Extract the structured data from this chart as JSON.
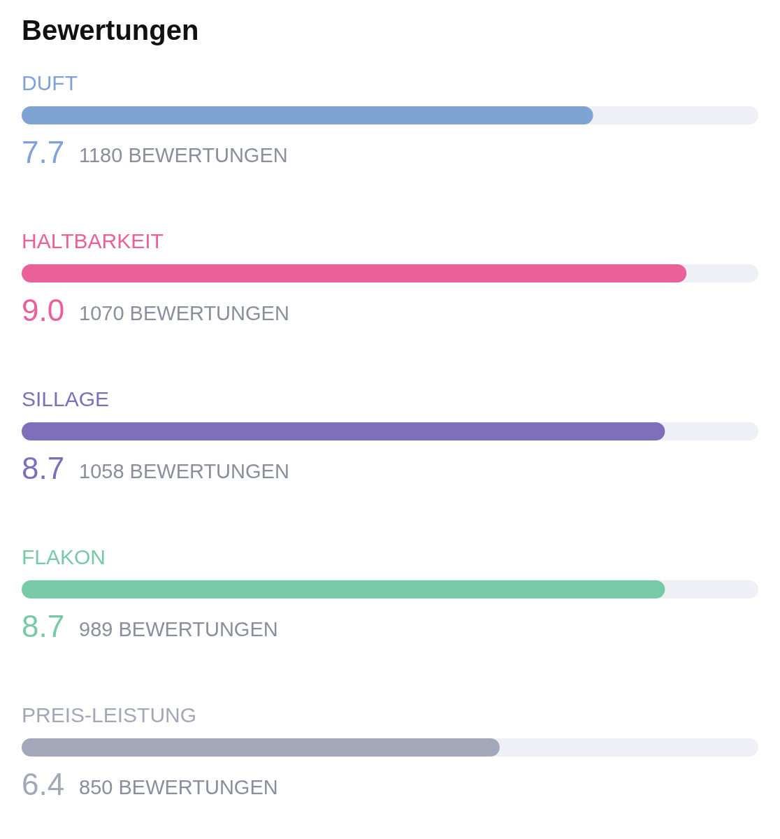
{
  "chart_data": {
    "type": "bar",
    "orientation": "horizontal",
    "title": "Bewertungen",
    "categories": [
      "DUFT",
      "HALTBARKEIT",
      "SILLAGE",
      "FLAKON",
      "PREIS-LEISTUNG"
    ],
    "values": [
      7.7,
      9.0,
      8.7,
      8.7,
      6.4
    ],
    "value_labels": [
      "7.7",
      "9.0",
      "8.7",
      "8.7",
      "6.4"
    ],
    "colors": [
      "#7fa3d3",
      "#e9609b",
      "#7d6fb9",
      "#78caa7",
      "#a3a8b8"
    ],
    "xlim": [
      0,
      10
    ],
    "annotations": [
      "1180 BEWERTUNGEN",
      "1070 BEWERTUNGEN",
      "1058 BEWERTUNGEN",
      "989 BEWERTUNGEN",
      "850 BEWERTUNGEN"
    ]
  }
}
